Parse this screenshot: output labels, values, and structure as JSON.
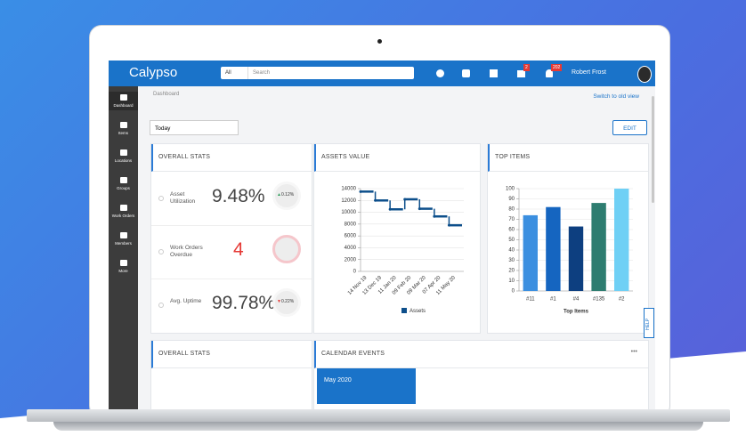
{
  "header": {
    "logo": "Calypso",
    "search_scope": "All",
    "search_placeholder": "Search",
    "cart_badge": "2",
    "notification_badge": "202",
    "user": "Robert Frost"
  },
  "sidebar": [
    "Dashboard",
    "Items",
    "Locations",
    "Groups",
    "Work Orders",
    "Members",
    "More"
  ],
  "breadcrumb": "Dashboard",
  "switch_link": "Switch to old view",
  "date_filter": "Today",
  "edit_button": "EDIT",
  "overall_stats": {
    "title": "OVERALL STATS",
    "rows": [
      {
        "label": "Asset Utilization",
        "value": "9.48%",
        "change": "0.12%"
      },
      {
        "label": "Work Orders Overdue",
        "value": "4"
      },
      {
        "label": "Avg. Uptime",
        "value": "99.78%",
        "change": "0.22%"
      }
    ]
  },
  "chart_data": [
    {
      "type": "line",
      "title": "ASSETS VALUE",
      "categories": [
        "14 Nov 19",
        "13 Dec 19",
        "11 Jan 20",
        "09 Feb 20",
        "09 Mar 20",
        "07 Apr 20",
        "11 May 20"
      ],
      "series": [
        {
          "name": "Assets",
          "color": "#0d4f8b",
          "values": [
            13500,
            12000,
            10500,
            12200,
            10600,
            9300,
            7800
          ]
        }
      ],
      "ylim": [
        0,
        14000
      ],
      "yticks": [
        0,
        2000,
        4000,
        6000,
        8000,
        10000,
        12000,
        14000
      ],
      "grid": true
    },
    {
      "type": "bar",
      "title": "TOP ITEMS",
      "x_label": "Top Items",
      "categories": [
        "#11",
        "#1",
        "#4",
        "#135",
        "#2"
      ],
      "values": [
        74,
        82,
        63,
        86,
        100
      ],
      "colors": [
        "#3b8fe0",
        "#1565c0",
        "#0d3f80",
        "#2e7d70",
        "#6fd0f5"
      ],
      "ylim": [
        0,
        100
      ],
      "yticks": [
        0,
        10,
        20,
        30,
        40,
        50,
        60,
        70,
        80,
        90,
        100
      ],
      "grid": true
    }
  ],
  "bottom": {
    "overall_stats_title": "OVERALL STATS",
    "calendar_title": "CALENDAR EVENTS",
    "calendar_month": "May 2020",
    "more": "•••"
  },
  "help": "HELP"
}
